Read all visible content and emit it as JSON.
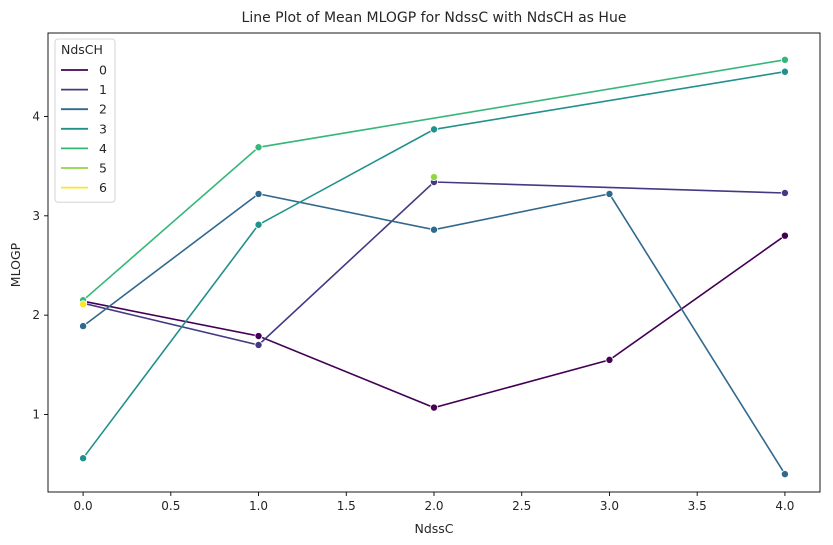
{
  "chart_data": {
    "type": "line",
    "title": "Line Plot of Mean MLOGP for NdssC with NdsCH as Hue",
    "xlabel": "NdssC",
    "ylabel": "MLOGP",
    "xlim": [
      -0.2,
      4.2
    ],
    "ylim": [
      0.22,
      4.84
    ],
    "xticks": [
      0.0,
      0.5,
      1.0,
      1.5,
      2.0,
      2.5,
      3.0,
      3.5,
      4.0
    ],
    "xtick_labels": [
      "0.0",
      "0.5",
      "1.0",
      "1.5",
      "2.0",
      "2.5",
      "3.0",
      "3.5",
      "4.0"
    ],
    "yticks": [
      1,
      2,
      3,
      4
    ],
    "ytick_labels": [
      "1",
      "2",
      "3",
      "4"
    ],
    "grid": false,
    "legend": {
      "title": "NdsCH",
      "placement": "upper-left"
    },
    "series": [
      {
        "name": "0",
        "color": "#440154",
        "x": [
          0,
          1,
          2,
          3,
          4
        ],
        "y": [
          2.14,
          1.79,
          1.07,
          1.55,
          2.8
        ]
      },
      {
        "name": "1",
        "color": "#443983",
        "x": [
          0,
          1,
          2,
          4
        ],
        "y": [
          2.12,
          1.7,
          3.34,
          3.23
        ]
      },
      {
        "name": "2",
        "color": "#31688e",
        "x": [
          0,
          1,
          2,
          3,
          4
        ],
        "y": [
          1.89,
          3.22,
          2.86,
          3.22,
          0.4
        ]
      },
      {
        "name": "3",
        "color": "#21918c",
        "x": [
          0,
          1,
          2,
          4
        ],
        "y": [
          0.56,
          2.91,
          3.87,
          4.45
        ]
      },
      {
        "name": "4",
        "color": "#35b779",
        "x": [
          0,
          1,
          4
        ],
        "y": [
          2.15,
          3.69,
          4.57
        ]
      },
      {
        "name": "5",
        "color": "#90d743",
        "x": [
          2
        ],
        "y": [
          3.39
        ]
      },
      {
        "name": "6",
        "color": "#fde725",
        "x": [
          0
        ],
        "y": [
          2.11
        ]
      }
    ]
  }
}
